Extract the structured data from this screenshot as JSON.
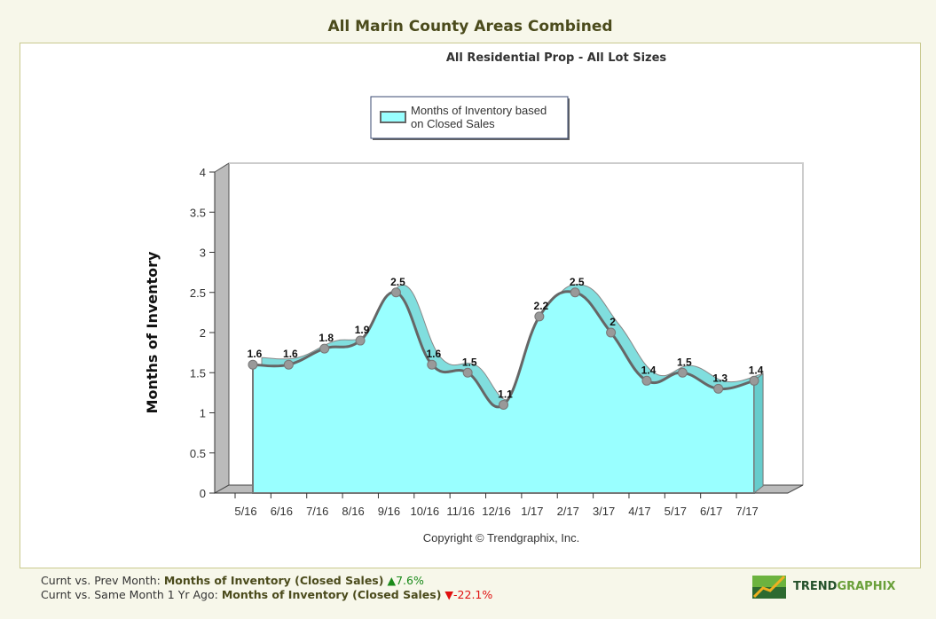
{
  "header": {
    "title": "All Marin County Areas Combined"
  },
  "chart_data": {
    "type": "area",
    "title": "All Residential Prop - All Lot Sizes",
    "ylabel": "Months of Inventory",
    "xlabel": "",
    "ylim": [
      0,
      4
    ],
    "yticks": [
      "0",
      "0.5",
      "1",
      "1.5",
      "2",
      "2.5",
      "3",
      "3.5",
      "4"
    ],
    "categories": [
      "5/16",
      "6/16",
      "7/16",
      "8/16",
      "9/16",
      "10/16",
      "11/16",
      "12/16",
      "1/17",
      "2/17",
      "3/17",
      "4/17",
      "5/17",
      "6/17",
      "7/17"
    ],
    "series": [
      {
        "name": "Months of Inventory based on Closed Sales",
        "values": [
          1.6,
          1.6,
          1.8,
          1.9,
          2.5,
          1.6,
          1.5,
          1.1,
          2.2,
          2.5,
          2,
          1.4,
          1.5,
          1.3,
          1.4
        ],
        "color": "#99ffff"
      }
    ],
    "legend_lines": [
      "Months of Inventory based",
      "on Closed Sales"
    ],
    "legend_position": "top",
    "style": "3d",
    "copyright": "Copyright © Trendgraphix, Inc."
  },
  "footer": {
    "line1_prefix": "Curnt vs. Prev Month:",
    "line1_metric": "Months of Inventory (Closed Sales)",
    "line1_change": "7.6%",
    "line2_prefix": "Curnt vs. Same Month 1 Yr Ago:",
    "line2_metric": "Months of Inventory (Closed Sales)",
    "line2_change": "-22.1%",
    "up_color": "#1a8a1a",
    "down_color": "#e01010"
  },
  "logo": {
    "text_a": "TREND",
    "text_b": "GRAPHIX"
  }
}
